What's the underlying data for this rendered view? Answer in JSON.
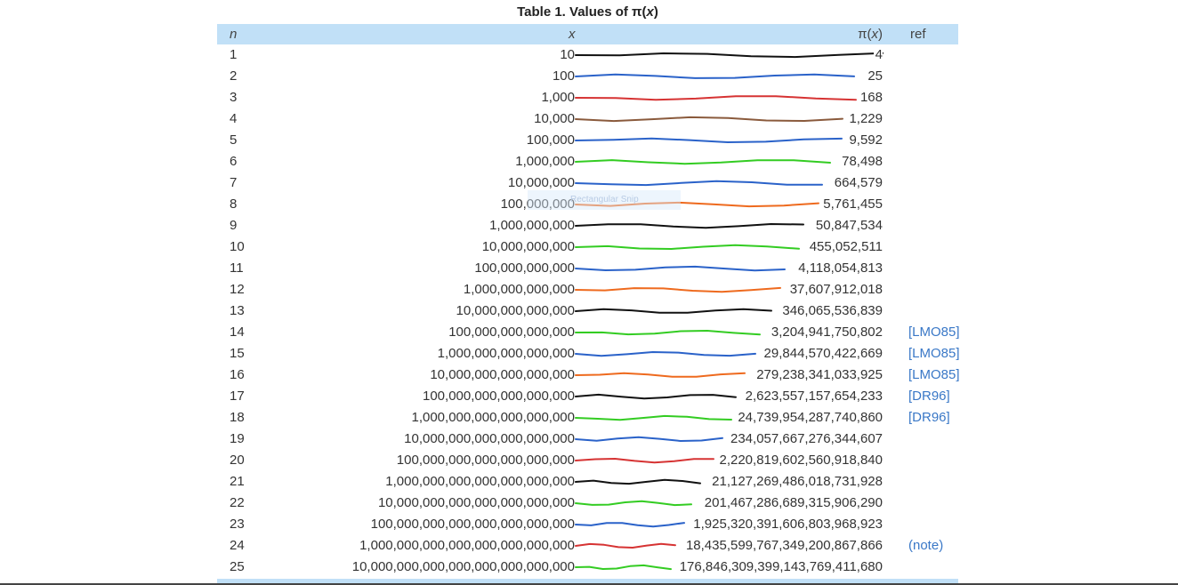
{
  "caption": {
    "prefix": "Table 1.  Values of π(",
    "var": "x",
    "suffix": ")"
  },
  "headers": {
    "n": "n",
    "x": "x",
    "pi_prefix": "π(",
    "pi_var": "x",
    "pi_suffix": ")",
    "ref": "ref"
  },
  "snip_label": "Rectangular Snip",
  "rows": [
    {
      "n": "1",
      "x": "10",
      "pi": "4",
      "ref": ""
    },
    {
      "n": "2",
      "x": "100",
      "pi": "25",
      "ref": ""
    },
    {
      "n": "3",
      "x": "1,000",
      "pi": "168",
      "ref": ""
    },
    {
      "n": "4",
      "x": "10,000",
      "pi": "1,229",
      "ref": ""
    },
    {
      "n": "5",
      "x": "100,000",
      "pi": "9,592",
      "ref": ""
    },
    {
      "n": "6",
      "x": "1,000,000",
      "pi": "78,498",
      "ref": ""
    },
    {
      "n": "7",
      "x": "10,000,000",
      "pi": "664,579",
      "ref": ""
    },
    {
      "n": "8",
      "x": "100,000,000",
      "pi": "5,761,455",
      "ref": ""
    },
    {
      "n": "9",
      "x": "1,000,000,000",
      "pi": "50,847,534",
      "ref": ""
    },
    {
      "n": "10",
      "x": "10,000,000,000",
      "pi": "455,052,511",
      "ref": ""
    },
    {
      "n": "11",
      "x": "100,000,000,000",
      "pi": "4,118,054,813",
      "ref": ""
    },
    {
      "n": "12",
      "x": "1,000,000,000,000",
      "pi": "37,607,912,018",
      "ref": ""
    },
    {
      "n": "13",
      "x": "10,000,000,000,000",
      "pi": "346,065,536,839",
      "ref": ""
    },
    {
      "n": "14",
      "x": "100,000,000,000,000",
      "pi": "3,204,941,750,802",
      "ref": "[LMO85]"
    },
    {
      "n": "15",
      "x": "1,000,000,000,000,000",
      "pi": "29,844,570,422,669",
      "ref": "[LMO85]"
    },
    {
      "n": "16",
      "x": "10,000,000,000,000,000",
      "pi": "279,238,341,033,925",
      "ref": "[LMO85]"
    },
    {
      "n": "17",
      "x": "100,000,000,000,000,000",
      "pi": "2,623,557,157,654,233",
      "ref": "[DR96]"
    },
    {
      "n": "18",
      "x": "1,000,000,000,000,000,000",
      "pi": "24,739,954,287,740,860",
      "ref": "[DR96]"
    },
    {
      "n": "19",
      "x": "10,000,000,000,000,000,000",
      "pi": "234,057,667,276,344,607",
      "ref": ""
    },
    {
      "n": "20",
      "x": "100,000,000,000,000,000,000",
      "pi": "2,220,819,602,560,918,840",
      "ref": ""
    },
    {
      "n": "21",
      "x": "1,000,000,000,000,000,000,000",
      "pi": "21,127,269,486,018,731,928",
      "ref": ""
    },
    {
      "n": "22",
      "x": "10,000,000,000,000,000,000,000",
      "pi": "201,467,286,689,315,906,290",
      "ref": ""
    },
    {
      "n": "23",
      "x": "100,000,000,000,000,000,000,000",
      "pi": "1,925,320,391,606,803,968,923",
      "ref": ""
    },
    {
      "n": "24",
      "x": "1,000,000,000,000,000,000,000,000",
      "pi": "18,435,599,767,349,200,867,866",
      "ref": "(note)"
    },
    {
      "n": "25",
      "x": "10,000,000,000,000,000,000,000,000",
      "pi": "176,846,309,399,143,769,411,680",
      "ref": ""
    }
  ],
  "annotation_colors": [
    "#111111",
    "#2a62c9",
    "#d63333",
    "#8a5a3c",
    "#2a62c9",
    "#33cc22",
    "#2a62c9",
    "#ee6a1e",
    "#111111",
    "#33cc22",
    "#2a62c9",
    "#ee6a1e",
    "#111111",
    "#33cc22",
    "#2a62c9",
    "#ee6a1e",
    "#111111",
    "#33cc22",
    "#2a62c9",
    "#d63333",
    "#111111",
    "#33cc22",
    "#2a62c9",
    "#d63333",
    "#33cc22"
  ]
}
